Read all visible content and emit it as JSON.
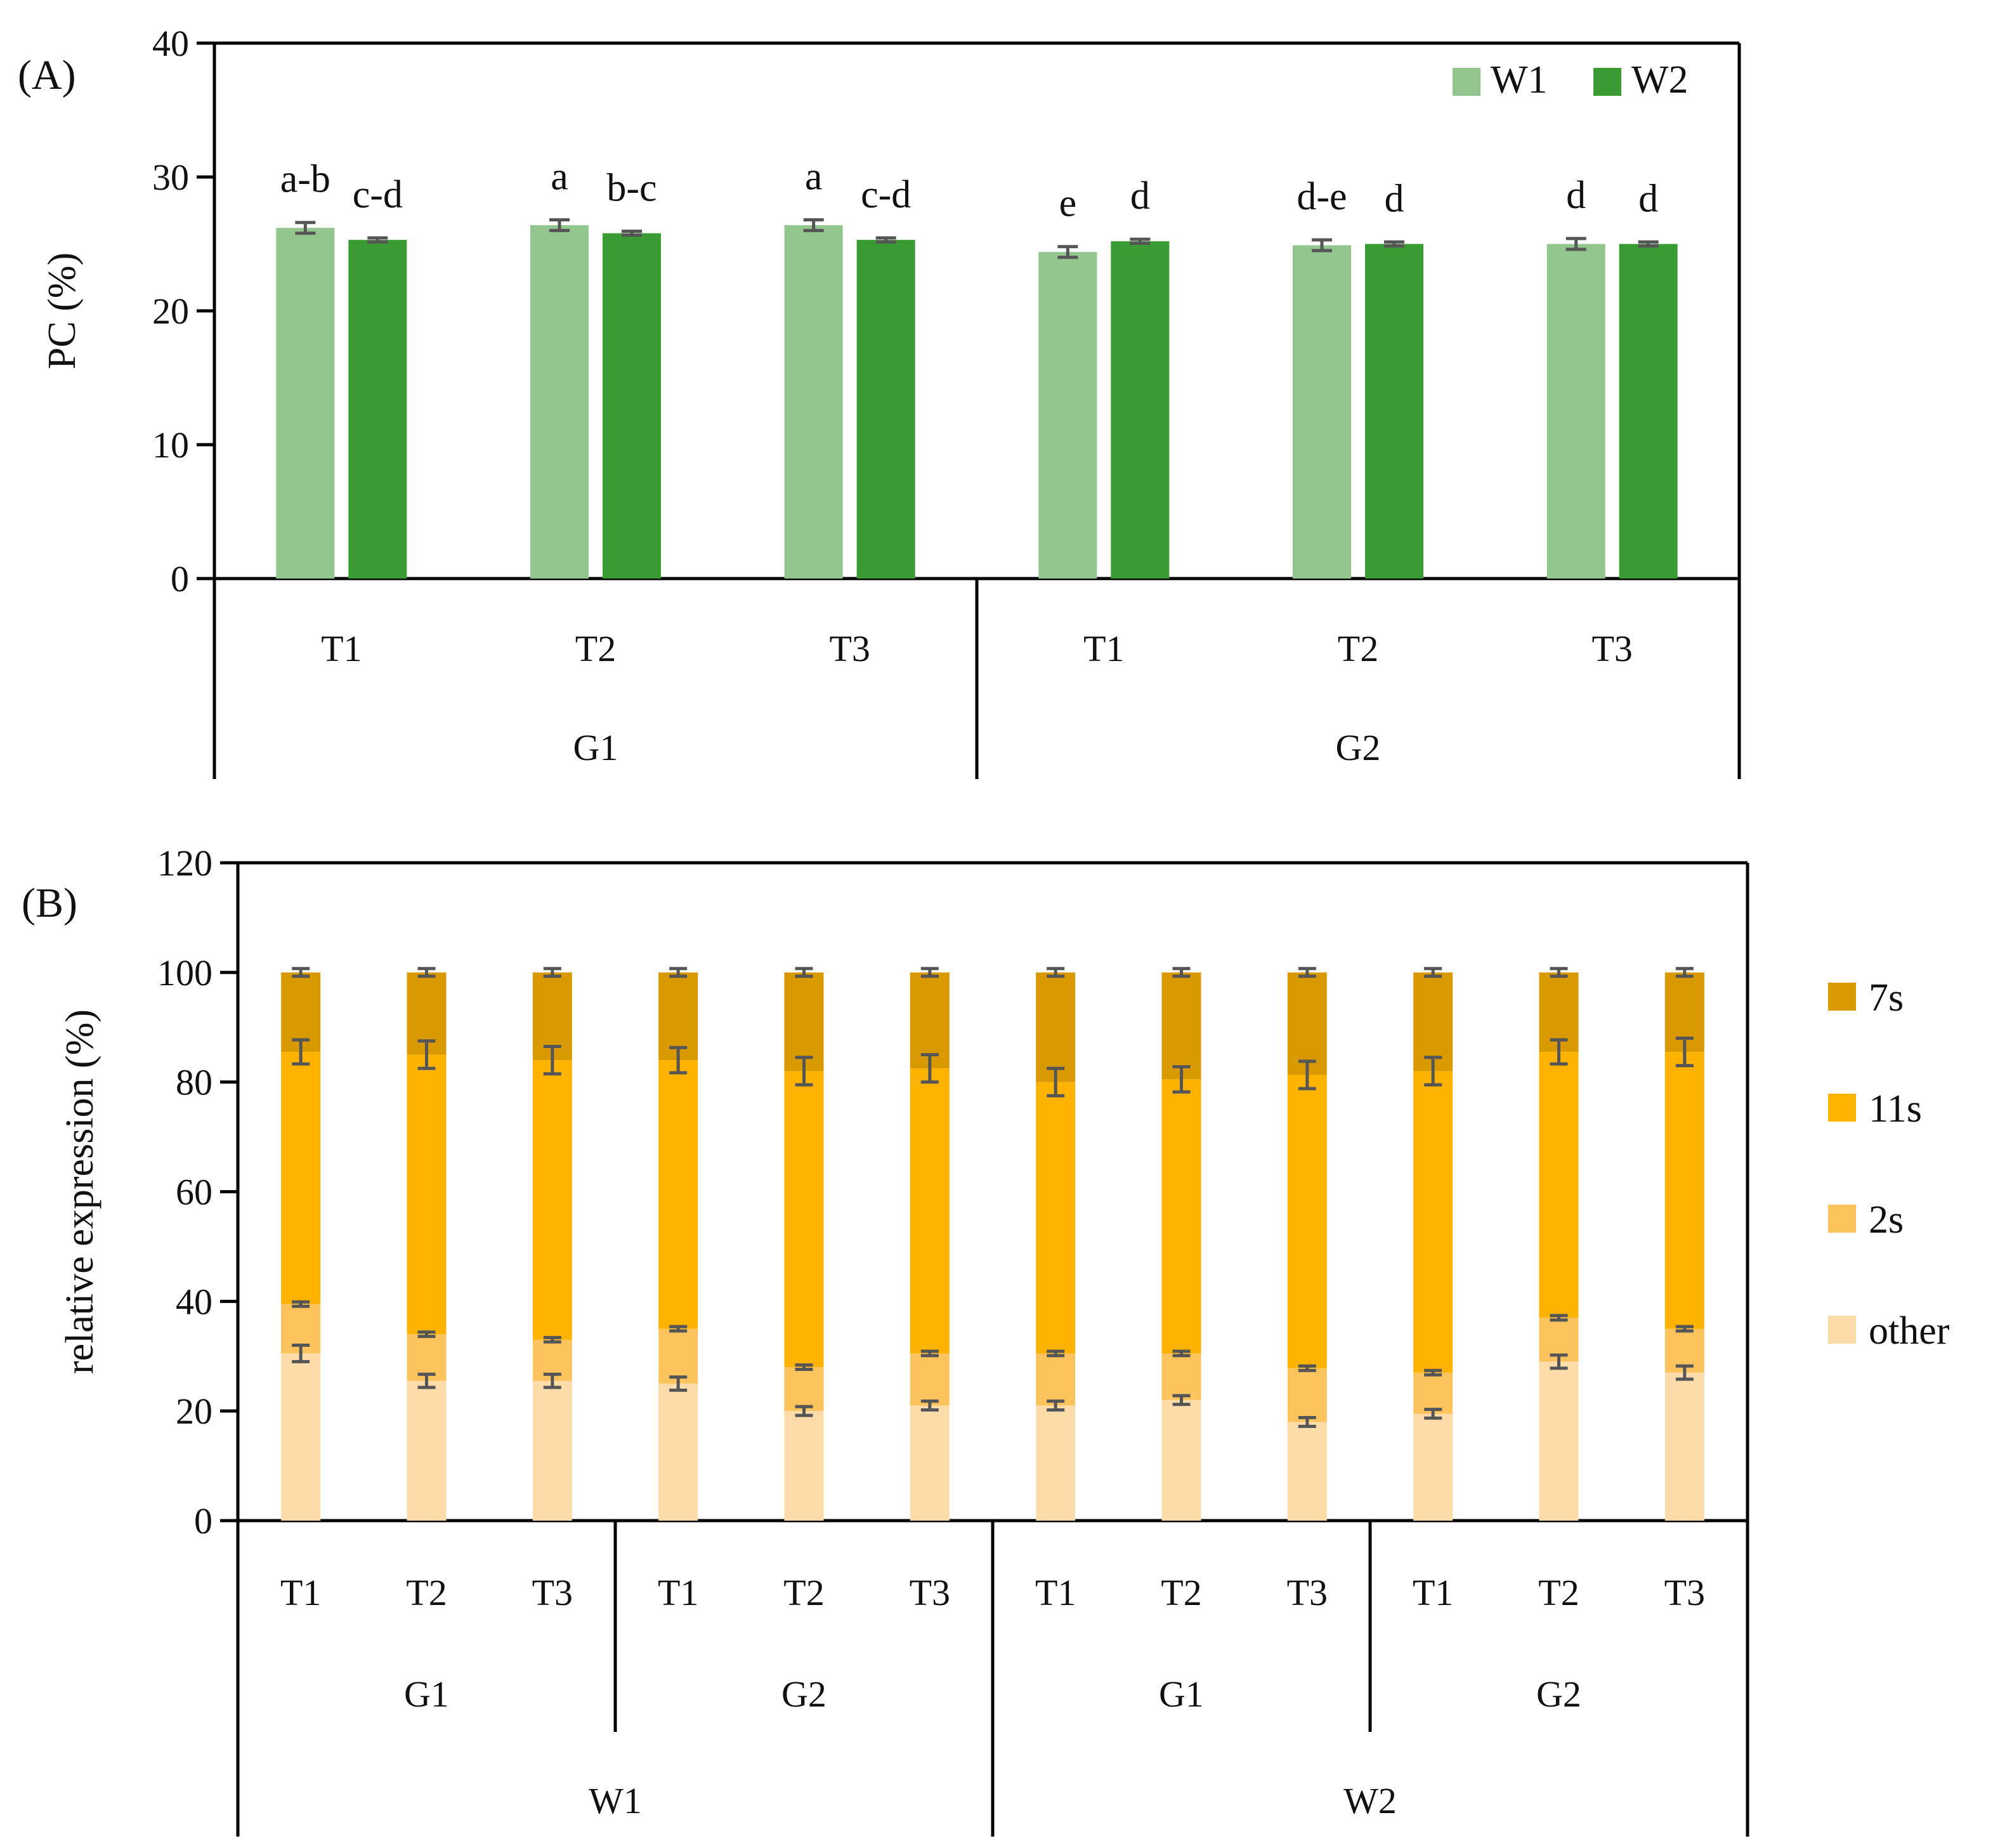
{
  "chart_data": [
    {
      "panel_label": "(A)",
      "type": "bar",
      "ylabel": "PC (%)",
      "ylim": [
        0,
        40
      ],
      "yticks": [
        "0",
        "10",
        "20",
        "30",
        "40"
      ],
      "groups": [
        {
          "name": "G1",
          "categories": [
            "T1",
            "T2",
            "T3"
          ]
        },
        {
          "name": "G2",
          "categories": [
            "T1",
            "T2",
            "T3"
          ]
        }
      ],
      "series": [
        {
          "name": "W1",
          "color": "#93c68f",
          "values": [
            26.2,
            26.4,
            26.4,
            24.4,
            24.9,
            25.0
          ],
          "errors": [
            0.4,
            0.4,
            0.4,
            0.4,
            0.4,
            0.4
          ],
          "letters": [
            "a-b",
            "a",
            "a",
            "e",
            "d-e",
            "d"
          ]
        },
        {
          "name": "W2",
          "color": "#3a9a34",
          "values": [
            25.3,
            25.8,
            25.3,
            25.2,
            25.0,
            25.0
          ],
          "errors": [
            0.15,
            0.15,
            0.15,
            0.15,
            0.15,
            0.15
          ],
          "letters": [
            "c-d",
            "b-c",
            "c-d",
            "d",
            "d",
            "d"
          ]
        }
      ],
      "legend_position": "top-right"
    },
    {
      "panel_label": "(B)",
      "type": "bar",
      "stacked": true,
      "ylabel": "relative expression (%)",
      "ylim": [
        0,
        120
      ],
      "yticks": [
        "0",
        "20",
        "40",
        "60",
        "80",
        "100",
        "120"
      ],
      "outer_groups": [
        {
          "name": "W1",
          "groups": [
            {
              "name": "G1",
              "categories": [
                "T1",
                "T2",
                "T3"
              ]
            },
            {
              "name": "G2",
              "categories": [
                "T1",
                "T2",
                "T3"
              ]
            }
          ]
        },
        {
          "name": "W2",
          "groups": [
            {
              "name": "G1",
              "categories": [
                "T1",
                "T2",
                "T3"
              ]
            },
            {
              "name": "G2",
              "categories": [
                "T1",
                "T2",
                "T3"
              ]
            }
          ]
        }
      ],
      "series": [
        {
          "name": "other",
          "color": "#fddcaa",
          "values": [
            30.5,
            25.5,
            25.5,
            25.0,
            20.0,
            21.0,
            21.0,
            22.0,
            18.0,
            19.5,
            29.0,
            27.0
          ],
          "errors": [
            1.5,
            1.2,
            1.2,
            1.2,
            0.8,
            0.8,
            0.8,
            0.8,
            0.8,
            0.8,
            1.2,
            1.2
          ]
        },
        {
          "name": "2s",
          "color": "#fdc45e",
          "values": [
            9.0,
            8.5,
            7.5,
            10.0,
            8.0,
            9.5,
            9.5,
            8.5,
            9.8,
            7.5,
            8.0,
            8.0
          ],
          "errors": [
            0.4,
            0.4,
            0.4,
            0.4,
            0.4,
            0.4,
            0.4,
            0.4,
            0.4,
            0.4,
            0.4,
            0.4
          ]
        },
        {
          "name": "11s",
          "color": "#fdb300",
          "values": [
            46.0,
            51.0,
            51.0,
            49.0,
            54.0,
            52.0,
            49.5,
            50.0,
            53.5,
            55.0,
            48.5,
            50.5
          ],
          "errors": [
            2.2,
            2.5,
            2.5,
            2.3,
            2.5,
            2.5,
            2.5,
            2.3,
            2.5,
            2.5,
            2.2,
            2.5
          ]
        },
        {
          "name": "7s",
          "color": "#d89a00",
          "values": [
            14.5,
            15.0,
            16.0,
            16.0,
            18.0,
            17.5,
            20.0,
            19.5,
            18.7,
            18.0,
            14.5,
            14.5
          ],
          "errors": [
            0.7,
            0.7,
            0.7,
            0.7,
            0.7,
            0.7,
            0.7,
            0.7,
            0.7,
            0.7,
            0.7,
            0.7
          ]
        }
      ],
      "legend_order": [
        "7s",
        "11s",
        "2s",
        "other"
      ],
      "legend_position": "right"
    }
  ]
}
